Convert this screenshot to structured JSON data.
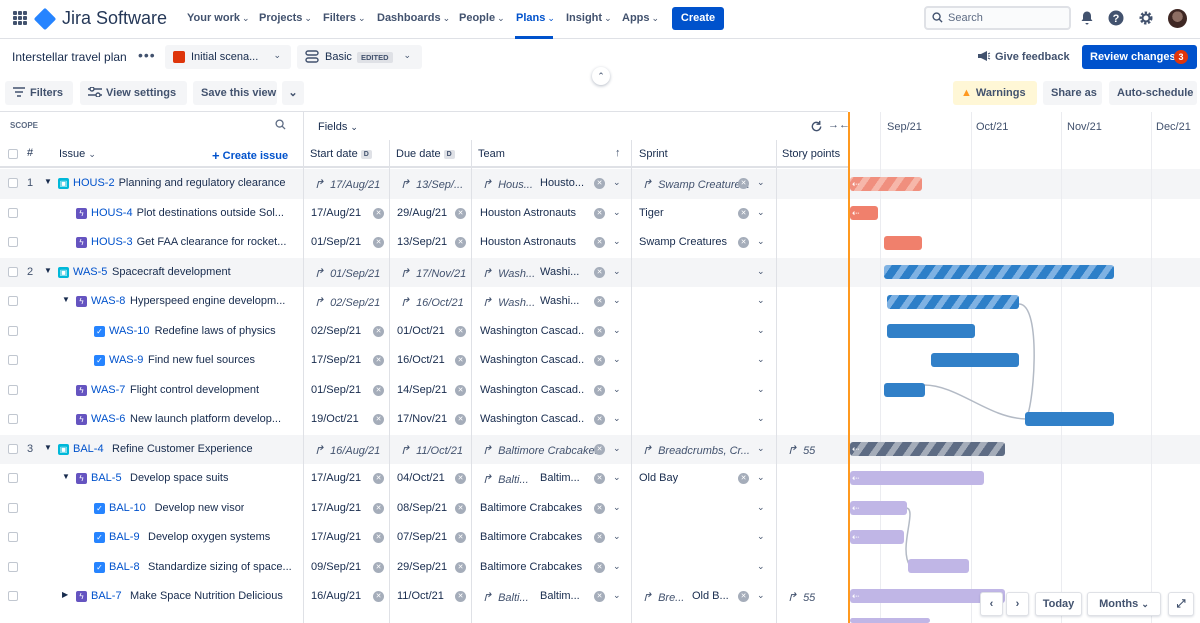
{
  "app": {
    "name": "Jira Software"
  },
  "nav": {
    "items": [
      "Your work",
      "Projects",
      "Filters",
      "Dashboards",
      "People",
      "Plans",
      "Insight",
      "Apps"
    ],
    "create_label": "Create",
    "search_placeholder": "Search"
  },
  "plan": {
    "title": "Interstellar travel plan",
    "scenario": "Initial scena...",
    "view": "Basic",
    "view_badge": "EDITED",
    "give_feedback": "Give feedback",
    "review_label": "Review changes",
    "review_count": "3"
  },
  "toolbar": {
    "filters": "Filters",
    "view_settings": "View settings",
    "save_view": "Save this view",
    "warnings": "Warnings",
    "share": "Share as",
    "auto_schedule": "Auto-schedule"
  },
  "table": {
    "scope_label": "SCOPE",
    "fields_label": "Fields",
    "col_rank": "#",
    "col_issue": "Issue",
    "create_issue": "Create issue",
    "col_start": "Start date",
    "col_due": "Due date",
    "col_team": "Team",
    "col_sprint": "Sprint",
    "col_points": "Story points",
    "date_badge": "D",
    "rows": [
      {
        "rank": "1",
        "key": "HOUS-2",
        "summary": "Planning and regulatory clearance",
        "start": "17/Aug/21",
        "due": "13/Sep/...",
        "team": "Hous...",
        "team2": "Housto...",
        "sprint": "Swamp Creature...",
        "points": ""
      },
      {
        "rank": "",
        "key": "HOUS-4",
        "summary": "Plot destinations outside Sol...",
        "start": "17/Aug/21",
        "due": "29/Aug/21",
        "team": "Houston Astronauts",
        "team2": "",
        "sprint": "Tiger",
        "points": ""
      },
      {
        "rank": "",
        "key": "HOUS-3",
        "summary": "Get FAA clearance for rocket...",
        "start": "01/Sep/21",
        "due": "13/Sep/21",
        "team": "Houston Astronauts",
        "team2": "",
        "sprint": "Swamp Creatures",
        "points": ""
      },
      {
        "rank": "2",
        "key": "WAS-5",
        "summary": "Spacecraft development",
        "start": "01/Sep/21",
        "due": "17/Nov/21",
        "team": "Wash...",
        "team2": "Washi...",
        "sprint": "",
        "points": ""
      },
      {
        "rank": "",
        "key": "WAS-8",
        "summary": "Hyperspeed engine developm...",
        "start": "02/Sep/21",
        "due": "16/Oct/21",
        "team": "Wash...",
        "team2": "Washi...",
        "sprint": "",
        "points": ""
      },
      {
        "rank": "",
        "key": "WAS-10",
        "summary": "Redefine laws of physics",
        "start": "02/Sep/21",
        "due": "01/Oct/21",
        "team": "Washington Cascad...",
        "team2": "",
        "sprint": "",
        "points": ""
      },
      {
        "rank": "",
        "key": "WAS-9",
        "summary": "Find new fuel sources",
        "start": "17/Sep/21",
        "due": "16/Oct/21",
        "team": "Washington Cascad...",
        "team2": "",
        "sprint": "",
        "points": ""
      },
      {
        "rank": "",
        "key": "WAS-7",
        "summary": "Flight control development",
        "start": "01/Sep/21",
        "due": "14/Sep/21",
        "team": "Washington Cascad...",
        "team2": "",
        "sprint": "",
        "points": ""
      },
      {
        "rank": "",
        "key": "WAS-6",
        "summary": "New launch platform develop...",
        "start": "19/Oct/21",
        "due": "17/Nov/21",
        "team": "Washington Cascad...",
        "team2": "",
        "sprint": "",
        "points": ""
      },
      {
        "rank": "3",
        "key": "BAL-4",
        "summary": "Refine Customer Experience",
        "start": "16/Aug/21",
        "due": "11/Oct/21",
        "team": "Baltimore Crabcakes",
        "team2": "",
        "sprint": "Breadcrumbs, Cr...",
        "points": "55"
      },
      {
        "rank": "",
        "key": "BAL-5",
        "summary": "Develop space suits",
        "start": "17/Aug/21",
        "due": "04/Oct/21",
        "team": "Balti...",
        "team2": "Baltim...",
        "sprint": "Old Bay",
        "points": ""
      },
      {
        "rank": "",
        "key": "BAL-10",
        "summary": "Develop new visor",
        "start": "17/Aug/21",
        "due": "08/Sep/21",
        "team": "Baltimore Crabcakes",
        "team2": "",
        "sprint": "",
        "points": ""
      },
      {
        "rank": "",
        "key": "BAL-9",
        "summary": "Develop oxygen systems",
        "start": "17/Aug/21",
        "due": "07/Sep/21",
        "team": "Baltimore Crabcakes",
        "team2": "",
        "sprint": "",
        "points": ""
      },
      {
        "rank": "",
        "key": "BAL-8",
        "summary": "Standardize sizing of space...",
        "start": "09/Sep/21",
        "due": "29/Sep/21",
        "team": "Baltimore Crabcakes",
        "team2": "",
        "sprint": "",
        "points": ""
      },
      {
        "rank": "",
        "key": "BAL-7",
        "summary": "Make Space Nutrition Delicious",
        "start": "16/Aug/21",
        "due": "11/Oct/21",
        "team": "Balti...",
        "team2": "Baltim...",
        "sprint": "Bre...",
        "sprint2": "Old B...",
        "points": "55"
      }
    ]
  },
  "timeline": {
    "months": [
      "Sep/21",
      "Oct/21",
      "Nov/21",
      "Dec/21"
    ],
    "today_label": "Today",
    "scale_label": "Months"
  }
}
